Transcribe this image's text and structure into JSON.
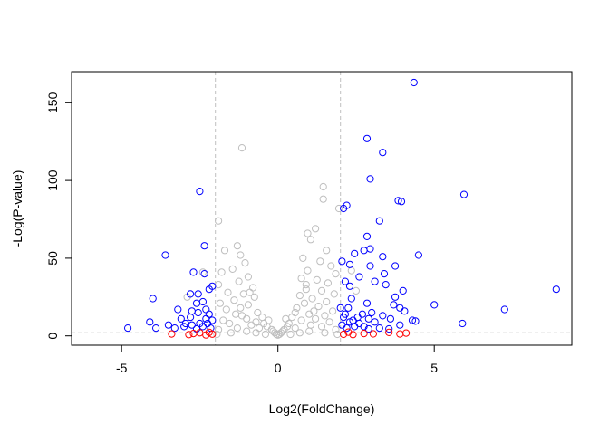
{
  "chart_data": {
    "type": "scatter",
    "title": "",
    "xlabel": "Log2(FoldChange)",
    "ylabel": "-Log(P-value)",
    "xlim": [
      -6.6,
      9.4
    ],
    "ylim": [
      -6,
      170
    ],
    "x_ticks": [
      -5,
      0,
      5
    ],
    "y_ticks": [
      0,
      50,
      100,
      150
    ],
    "grid": false,
    "legend": "none",
    "reference_lines": {
      "vertical": [
        -2,
        2
      ],
      "horizontal": [
        2
      ],
      "style": "dashed",
      "color": "#c0c0c0"
    },
    "colors": {
      "not_significant": "#bebebe",
      "significant_fold_change": "#ff0000",
      "significant_both": "#0000ff"
    },
    "series": [
      {
        "color": "#0000ff",
        "points": [
          [
            4.35,
            163
          ],
          [
            2.85,
            127
          ],
          [
            3.35,
            118
          ],
          [
            2.95,
            101
          ],
          [
            5.95,
            91
          ],
          [
            -2.5,
            93
          ],
          [
            3.85,
            87
          ],
          [
            3.95,
            86.5
          ],
          [
            2.2,
            84
          ],
          [
            2.1,
            82
          ],
          [
            3.25,
            74
          ],
          [
            2.85,
            64
          ],
          [
            -2.35,
            58
          ],
          [
            2.95,
            56
          ],
          [
            2.75,
            55
          ],
          [
            3.35,
            51
          ],
          [
            4.5,
            52
          ],
          [
            2.45,
            53
          ],
          [
            -3.6,
            52
          ],
          [
            2.05,
            48
          ],
          [
            2.3,
            46
          ],
          [
            2.95,
            45
          ],
          [
            3.75,
            45
          ],
          [
            -2.7,
            41
          ],
          [
            -2.35,
            40
          ],
          [
            2.6,
            38
          ],
          [
            3.4,
            40
          ],
          [
            2.15,
            35
          ],
          [
            3.1,
            35
          ],
          [
            3.45,
            33
          ],
          [
            2.3,
            32
          ],
          [
            -2.1,
            32
          ],
          [
            -2.2,
            30
          ],
          [
            4.0,
            29
          ],
          [
            8.9,
            30
          ],
          [
            -2.8,
            27
          ],
          [
            -2.55,
            27
          ],
          [
            -4.0,
            24
          ],
          [
            3.75,
            25
          ],
          [
            2.35,
            24
          ],
          [
            -2.4,
            22
          ],
          [
            -2.6,
            21
          ],
          [
            5.0,
            20
          ],
          [
            3.7,
            20
          ],
          [
            3.9,
            18
          ],
          [
            2.0,
            18
          ],
          [
            2.25,
            18
          ],
          [
            -2.3,
            17
          ],
          [
            -3.2,
            17
          ],
          [
            4.05,
            16
          ],
          [
            7.25,
            17
          ],
          [
            2.15,
            14
          ],
          [
            3.35,
            13
          ],
          [
            2.55,
            12
          ],
          [
            2.9,
            11
          ],
          [
            -2.1,
            10
          ],
          [
            -2.8,
            12
          ],
          [
            -3.1,
            11
          ],
          [
            4.3,
            10
          ],
          [
            4.4,
            9.5
          ],
          [
            3.1,
            9
          ],
          [
            2.6,
            8
          ],
          [
            2.3,
            9
          ],
          [
            -2.25,
            8
          ],
          [
            -2.5,
            8
          ],
          [
            -4.1,
            9
          ],
          [
            -3.5,
            7
          ],
          [
            5.9,
            8
          ],
          [
            -4.8,
            5
          ],
          [
            3.9,
            7
          ],
          [
            2.05,
            7
          ],
          [
            2.45,
            6
          ],
          [
            -3.0,
            6
          ],
          [
            -2.75,
            7
          ],
          [
            2.75,
            6
          ],
          [
            -2.4,
            6
          ],
          [
            3.25,
            5
          ],
          [
            -3.3,
            5
          ],
          [
            2.2,
            5
          ],
          [
            -2.15,
            5
          ],
          [
            -3.9,
            5
          ],
          [
            2.9,
            4.5
          ],
          [
            -2.6,
            4.5
          ],
          [
            3.55,
            4.5
          ],
          [
            -2.2,
            14
          ],
          [
            -2.55,
            15
          ],
          [
            -2.95,
            8
          ],
          [
            2.7,
            14
          ],
          [
            3.0,
            15
          ],
          [
            -2.3,
            11
          ],
          [
            2.4,
            10
          ],
          [
            3.6,
            11
          ],
          [
            2.1,
            12
          ],
          [
            -2.75,
            16
          ],
          [
            2.85,
            21
          ]
        ]
      },
      {
        "color": "#ff0000",
        "points": [
          [
            -3.4,
            1.2
          ],
          [
            -2.7,
            1.5
          ],
          [
            -2.3,
            0.6
          ],
          [
            -2.1,
            1.1
          ],
          [
            -2.5,
            2.0
          ],
          [
            2.1,
            1.0
          ],
          [
            2.4,
            0.8
          ],
          [
            2.75,
            1.5
          ],
          [
            3.05,
            1.3
          ],
          [
            3.55,
            2.2
          ],
          [
            3.9,
            1.2
          ],
          [
            4.1,
            1.8
          ],
          [
            -2.2,
            2.3
          ],
          [
            2.25,
            2.4
          ],
          [
            -2.85,
            0.8
          ]
        ]
      },
      {
        "color": "#bebebe",
        "points": [
          [
            -1.15,
            121
          ],
          [
            1.45,
            96
          ],
          [
            1.45,
            88
          ],
          [
            1.95,
            82
          ],
          [
            -1.9,
            74
          ],
          [
            1.2,
            69
          ],
          [
            0.95,
            66
          ],
          [
            1.05,
            62
          ],
          [
            -1.3,
            58
          ],
          [
            1.55,
            55
          ],
          [
            -1.7,
            55
          ],
          [
            -1.2,
            52
          ],
          [
            0.8,
            50
          ],
          [
            1.35,
            48
          ],
          [
            -1.05,
            47
          ],
          [
            1.7,
            45
          ],
          [
            -1.45,
            43
          ],
          [
            0.95,
            42
          ],
          [
            -1.8,
            41
          ],
          [
            1.85,
            40
          ],
          [
            -0.95,
            38
          ],
          [
            0.75,
            37
          ],
          [
            1.25,
            36
          ],
          [
            -1.25,
            35
          ],
          [
            -1.9,
            33
          ],
          [
            1.6,
            34
          ],
          [
            -0.8,
            31
          ],
          [
            0.9,
            30
          ],
          [
            1.4,
            29
          ],
          [
            -1.6,
            28
          ],
          [
            -1.1,
            27
          ],
          [
            1.8,
            27
          ],
          [
            0.7,
            26
          ],
          [
            -0.75,
            25
          ],
          [
            1.1,
            24
          ],
          [
            -1.4,
            23
          ],
          [
            1.55,
            22
          ],
          [
            0.85,
            21
          ],
          [
            -1.85,
            21
          ],
          [
            -0.95,
            20
          ],
          [
            1.3,
            19
          ],
          [
            0.6,
            18
          ],
          [
            -1.2,
            18
          ],
          [
            -1.65,
            17
          ],
          [
            1.75,
            16
          ],
          [
            0.55,
            15
          ],
          [
            -0.65,
            15
          ],
          [
            1.0,
            14
          ],
          [
            -1.35,
            14
          ],
          [
            1.5,
            13
          ],
          [
            -0.5,
            12
          ],
          [
            0.45,
            12
          ],
          [
            -1.0,
            11
          ],
          [
            1.2,
            11
          ],
          [
            -1.75,
            10
          ],
          [
            0.75,
            10
          ],
          [
            -0.7,
            9
          ],
          [
            1.65,
            9
          ],
          [
            0.35,
            8
          ],
          [
            -0.45,
            8
          ],
          [
            -1.55,
            8
          ],
          [
            1.05,
            7
          ],
          [
            -0.85,
            7
          ],
          [
            0.3,
            6
          ],
          [
            -0.35,
            6
          ],
          [
            1.4,
            6
          ],
          [
            -1.3,
            5
          ],
          [
            0.55,
            5
          ],
          [
            -0.6,
            5
          ],
          [
            0.2,
            4
          ],
          [
            -0.2,
            4
          ],
          [
            1.85,
            4
          ],
          [
            -1.9,
            4
          ],
          [
            0.15,
            3
          ],
          [
            -0.15,
            3
          ],
          [
            0.1,
            2
          ],
          [
            -0.1,
            2
          ],
          [
            0.05,
            1
          ],
          [
            -0.05,
            1
          ],
          [
            0.0,
            0.5
          ],
          [
            1.0,
            3
          ],
          [
            -1.0,
            3
          ],
          [
            1.5,
            2
          ],
          [
            -1.5,
            2
          ],
          [
            0.7,
            2
          ],
          [
            -0.7,
            2
          ],
          [
            1.9,
            1
          ],
          [
            -1.95,
            1
          ],
          [
            0.4,
            1
          ],
          [
            -0.4,
            1
          ],
          [
            -2.4,
            41
          ],
          [
            -2.9,
            25
          ],
          [
            2.35,
            42
          ],
          [
            2.5,
            29
          ],
          [
            -0.3,
            10
          ],
          [
            0.25,
            11
          ],
          [
            1.15,
            16
          ],
          [
            -1.15,
            13
          ],
          [
            0.9,
            33
          ],
          [
            -0.9,
            28
          ]
        ]
      }
    ]
  }
}
